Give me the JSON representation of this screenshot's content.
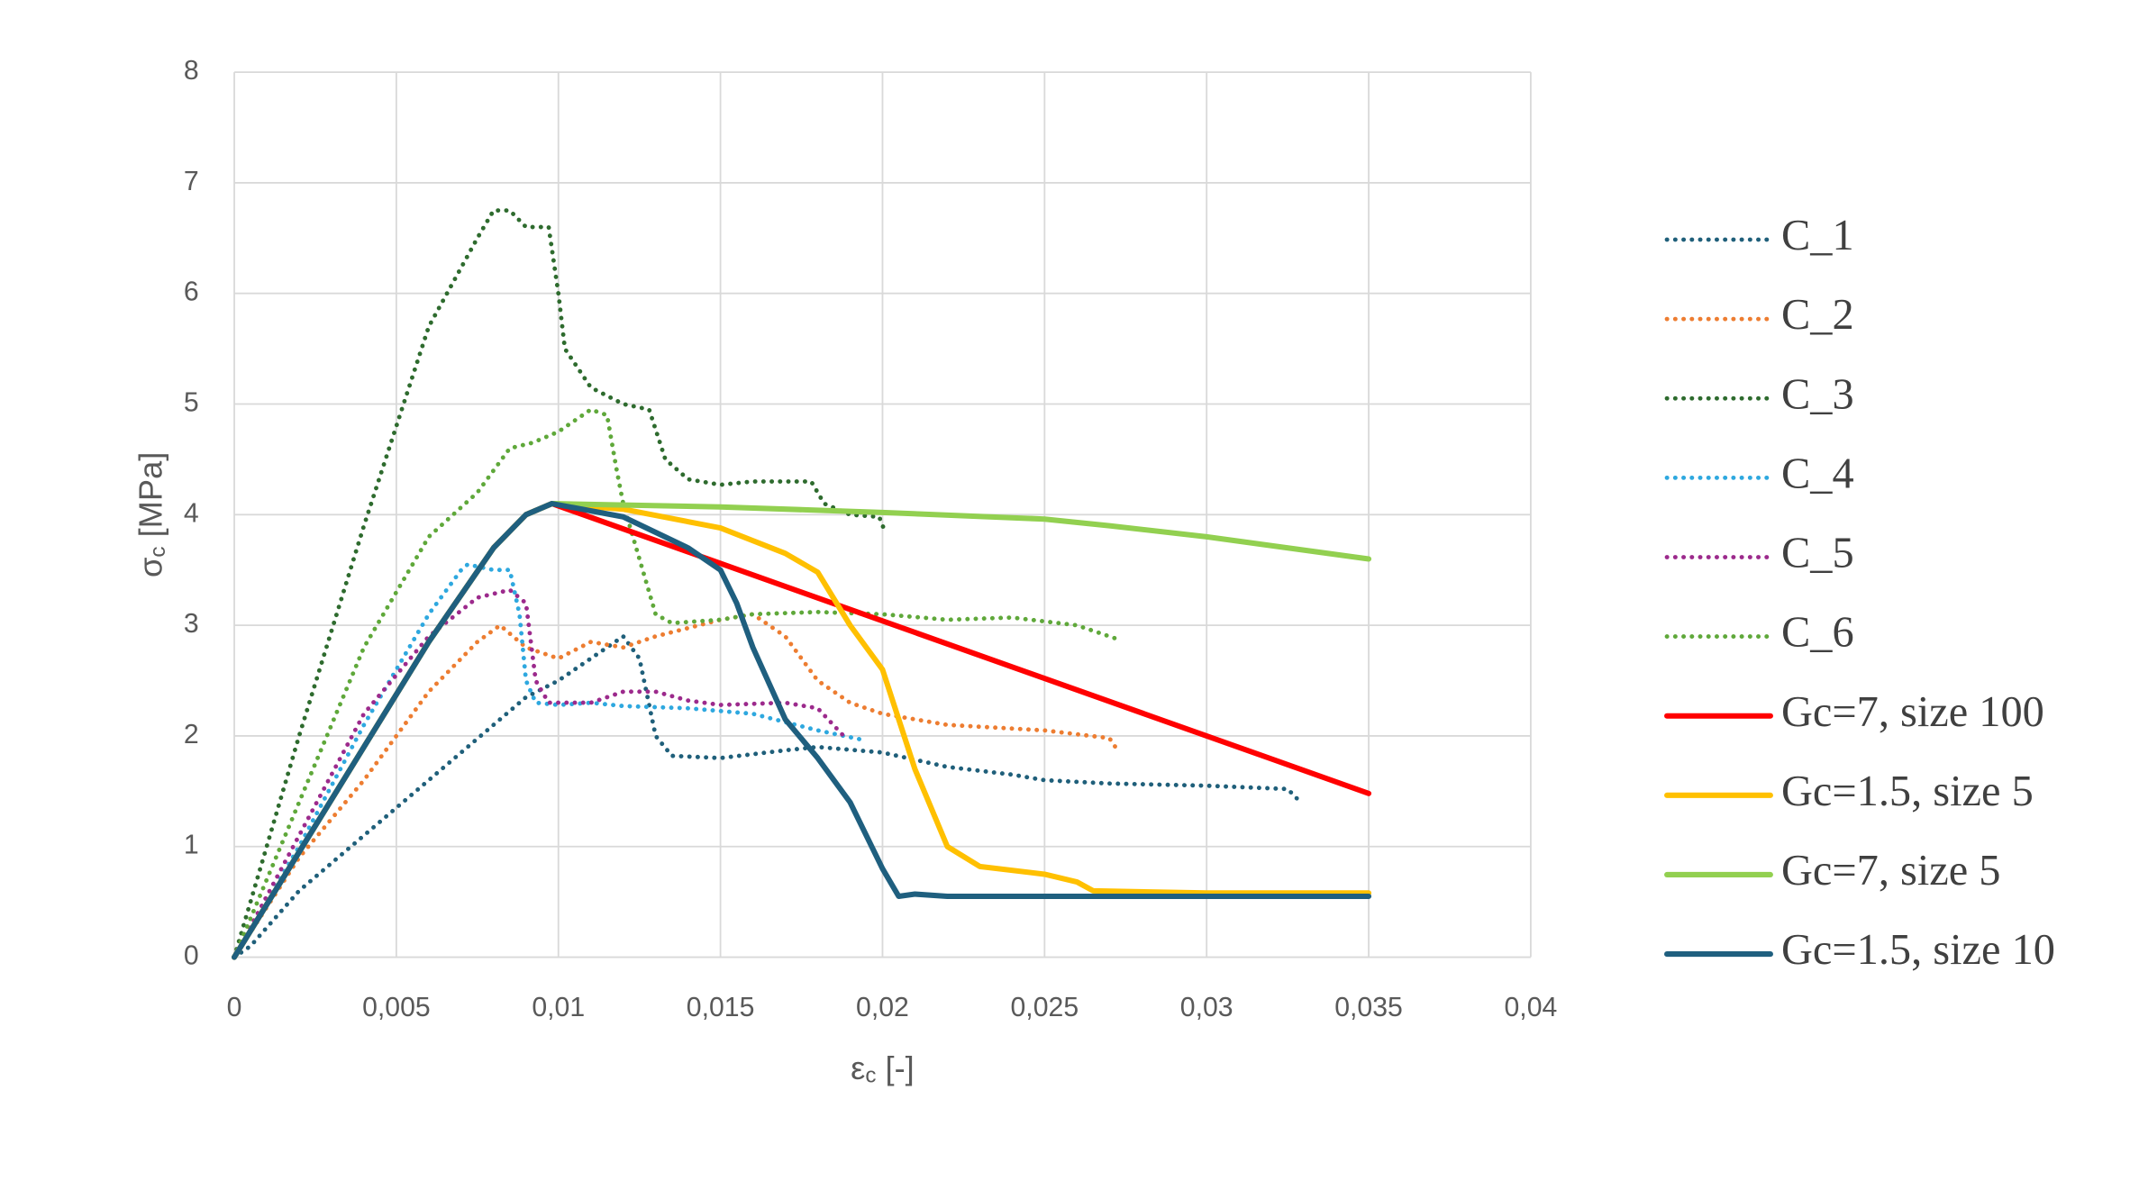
{
  "chart_data": {
    "type": "line",
    "x_label": {
      "symbol": "ε",
      "subscript": "c",
      "unit": "[-]"
    },
    "y_label": {
      "symbol": "σ",
      "subscript": "c",
      "unit": "[MPa]"
    },
    "xlim": [
      0,
      0.04
    ],
    "xticks": [
      0,
      {
        "value": 0.005,
        "label": "0,005"
      },
      {
        "value": 0.01,
        "label": "0,01"
      },
      {
        "value": 0.015,
        "label": "0,015"
      },
      {
        "value": 0.02,
        "label": "0,02"
      },
      {
        "value": 0.025,
        "label": "0,025"
      },
      {
        "value": 0.03,
        "label": "0,03"
      },
      {
        "value": 0.035,
        "label": "0,035"
      },
      {
        "value": 0.04,
        "label": "0,04"
      }
    ],
    "ylim": [
      0,
      8
    ],
    "yticks": [
      0,
      1,
      2,
      3,
      4,
      5,
      6,
      7,
      8
    ],
    "grid": true,
    "legend": "right",
    "series": [
      {
        "name": "C_1",
        "color": "#1f5f7a",
        "style": "dotted",
        "x": [
          0,
          0.0005,
          0.002,
          0.004,
          0.006,
          0.008,
          0.009,
          0.01,
          0.011,
          0.012,
          0.0125,
          0.013,
          0.0135,
          0.015,
          0.017,
          0.018,
          0.02,
          0.022,
          0.024,
          0.025,
          0.027,
          0.03,
          0.0325,
          0.0328
        ],
        "values": [
          0,
          0.1,
          0.6,
          1.1,
          1.6,
          2.1,
          2.35,
          2.5,
          2.7,
          2.9,
          2.7,
          2.0,
          1.82,
          1.8,
          1.87,
          1.9,
          1.85,
          1.72,
          1.65,
          1.6,
          1.57,
          1.55,
          1.52,
          1.43
        ]
      },
      {
        "name": "C_2",
        "color": "#ed7d31",
        "style": "dotted",
        "x": [
          0,
          0.002,
          0.004,
          0.006,
          0.0075,
          0.0082,
          0.009,
          0.0095,
          0.01,
          0.011,
          0.012,
          0.013,
          0.015,
          0.016,
          0.017,
          0.018,
          0.019,
          0.02,
          0.022,
          0.025,
          0.027,
          0.0273
        ],
        "values": [
          0,
          0.9,
          1.6,
          2.4,
          2.85,
          3.0,
          2.8,
          2.75,
          2.7,
          2.85,
          2.8,
          2.9,
          3.05,
          3.1,
          2.9,
          2.5,
          2.3,
          2.2,
          2.1,
          2.05,
          1.98,
          1.85
        ]
      },
      {
        "name": "C_3",
        "color": "#2e6b2e",
        "style": "dotted",
        "x": [
          0,
          0.002,
          0.004,
          0.006,
          0.0075,
          0.008,
          0.0085,
          0.009,
          0.0097,
          0.01,
          0.0102,
          0.011,
          0.012,
          0.0128,
          0.0133,
          0.014,
          0.015,
          0.016,
          0.017,
          0.0178,
          0.0182,
          0.019,
          0.0199,
          0.02,
          0.0201
        ],
        "values": [
          0,
          2.0,
          3.9,
          5.7,
          6.5,
          6.75,
          6.75,
          6.6,
          6.6,
          6.0,
          5.5,
          5.15,
          5.0,
          4.95,
          4.5,
          4.32,
          4.27,
          4.3,
          4.3,
          4.3,
          4.1,
          4.0,
          3.98,
          3.9,
          3.85
        ]
      },
      {
        "name": "C_4",
        "color": "#2ea8df",
        "style": "dotted",
        "x": [
          0,
          0.002,
          0.004,
          0.006,
          0.007,
          0.0072,
          0.008,
          0.0085,
          0.0088,
          0.009,
          0.0093,
          0.01,
          0.011,
          0.012,
          0.014,
          0.016,
          0.018,
          0.0193
        ],
        "values": [
          0,
          1.0,
          2.1,
          3.1,
          3.5,
          3.55,
          3.5,
          3.5,
          3.1,
          2.5,
          2.3,
          2.28,
          2.3,
          2.27,
          2.25,
          2.2,
          2.05,
          1.97
        ]
      },
      {
        "name": "C_5",
        "color": "#9c2a8c",
        "style": "dotted",
        "x": [
          0,
          0.002,
          0.004,
          0.006,
          0.0075,
          0.0085,
          0.009,
          0.0093,
          0.0097,
          0.011,
          0.012,
          0.013,
          0.014,
          0.015,
          0.017,
          0.018,
          0.0188
        ],
        "values": [
          0,
          1.1,
          2.2,
          2.9,
          3.25,
          3.32,
          3.2,
          2.5,
          2.3,
          2.3,
          2.4,
          2.4,
          2.32,
          2.28,
          2.3,
          2.25,
          2.0
        ]
      },
      {
        "name": "C_6",
        "color": "#5fa83a",
        "style": "dotted",
        "x": [
          0,
          0.002,
          0.004,
          0.006,
          0.0075,
          0.0085,
          0.0092,
          0.01,
          0.011,
          0.0115,
          0.0118,
          0.012,
          0.0125,
          0.013,
          0.0135,
          0.015,
          0.016,
          0.018,
          0.02,
          0.022,
          0.024,
          0.026,
          0.0272
        ],
        "values": [
          0,
          1.4,
          2.8,
          3.8,
          4.2,
          4.6,
          4.65,
          4.75,
          4.95,
          4.9,
          4.4,
          4.1,
          3.6,
          3.1,
          3.02,
          3.05,
          3.1,
          3.12,
          3.1,
          3.05,
          3.07,
          3.0,
          2.88
        ]
      },
      {
        "name": "Gc=7, size 100",
        "color": "#ff0000",
        "style": "solid",
        "x": [
          0,
          0.002,
          0.004,
          0.006,
          0.008,
          0.009,
          0.0098,
          0.035
        ],
        "values": [
          0,
          0.95,
          1.9,
          2.85,
          3.7,
          4.0,
          4.1,
          1.48
        ]
      },
      {
        "name": "Gc=1.5, size 5",
        "color": "#ffc000",
        "style": "solid",
        "x": [
          0,
          0.002,
          0.004,
          0.006,
          0.008,
          0.009,
          0.0098,
          0.012,
          0.015,
          0.017,
          0.018,
          0.019,
          0.02,
          0.021,
          0.022,
          0.023,
          0.025,
          0.026,
          0.0265,
          0.03,
          0.035
        ],
        "values": [
          0,
          0.95,
          1.9,
          2.85,
          3.7,
          4.0,
          4.1,
          4.05,
          3.88,
          3.65,
          3.48,
          3.0,
          2.6,
          1.7,
          1.0,
          0.82,
          0.75,
          0.68,
          0.6,
          0.58,
          0.58
        ]
      },
      {
        "name": "Gc=7, size 5",
        "color": "#92d050",
        "style": "solid",
        "x": [
          0,
          0.002,
          0.004,
          0.006,
          0.008,
          0.009,
          0.0098,
          0.015,
          0.02,
          0.025,
          0.027,
          0.03,
          0.035
        ],
        "values": [
          0,
          0.95,
          1.9,
          2.85,
          3.7,
          4.0,
          4.1,
          4.07,
          4.02,
          3.96,
          3.9,
          3.8,
          3.6
        ]
      },
      {
        "name": "Gc=1.5, size 10",
        "color": "#1f5f7f",
        "style": "solid",
        "x": [
          0,
          0.002,
          0.004,
          0.006,
          0.008,
          0.009,
          0.0098,
          0.012,
          0.014,
          0.015,
          0.0155,
          0.016,
          0.017,
          0.018,
          0.019,
          0.02,
          0.0205,
          0.021,
          0.022,
          0.025,
          0.035
        ],
        "values": [
          0,
          0.95,
          1.9,
          2.85,
          3.7,
          4.0,
          4.1,
          3.98,
          3.7,
          3.5,
          3.2,
          2.8,
          2.15,
          1.8,
          1.4,
          0.8,
          0.55,
          0.57,
          0.55,
          0.55,
          0.55
        ]
      }
    ]
  }
}
